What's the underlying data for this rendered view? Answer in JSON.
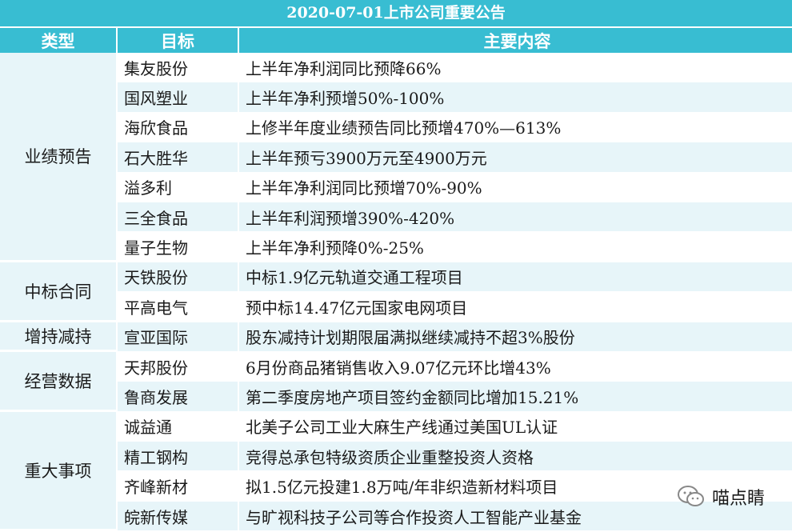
{
  "title": "2020-07-01上市公司重要公告",
  "headers": {
    "type": "类型",
    "target": "目标",
    "content": "主要内容"
  },
  "groups": [
    {
      "category": "业绩预告",
      "rows": [
        {
          "target": "集友股份",
          "content": "上半年净利润同比预降66%"
        },
        {
          "target": "国风塑业",
          "content": "上半年净利预增50%-100%"
        },
        {
          "target": "海欣食品",
          "content": "上修半年度业绩预告同比预增470%—613%"
        },
        {
          "target": "石大胜华",
          "content": "上半年预亏3900万元至4900万元"
        },
        {
          "target": "溢多利",
          "content": "上半年净利润同比预增70%-90%"
        },
        {
          "target": "三全食品",
          "content": "上半年利润预增390%-420%"
        },
        {
          "target": "量子生物",
          "content": "上半年净利预降0%-25%"
        }
      ]
    },
    {
      "category": "中标合同",
      "rows": [
        {
          "target": "天铁股份",
          "content": "中标1.9亿元轨道交通工程项目"
        },
        {
          "target": "平高电气",
          "content": "预中标14.47亿元国家电网项目"
        }
      ]
    },
    {
      "category": "增持减持",
      "rows": [
        {
          "target": "宣亚国际",
          "content": "股东减持计划期限届满拟继续减持不超3%股份"
        }
      ]
    },
    {
      "category": "经营数据",
      "rows": [
        {
          "target": "天邦股份",
          "content": "6月份商品猪销售收入9.07亿元环比增43%"
        },
        {
          "target": "鲁商发展",
          "content": "第二季度房地产项目签约金额同比增加15.21%"
        }
      ]
    },
    {
      "category": "重大事项",
      "rows": [
        {
          "target": "诚益通",
          "content": "北美子公司工业大麻生产线通过美国UL认证"
        },
        {
          "target": "精工钢构",
          "content": "竞得总承包特级资质企业重整投资人资格"
        },
        {
          "target": "齐峰新材",
          "content": "拟1.5亿元投建1.8万吨/年非织造新材料项目"
        },
        {
          "target": "皖新传媒",
          "content": "与旷视科技子公司等合作投资人工智能产业基金"
        }
      ]
    }
  ],
  "watermark": {
    "text": "喵点睛",
    "icon": "wechat-icon"
  },
  "colors": {
    "header": "#38bdd2",
    "stripe": "#e7f5f9"
  }
}
